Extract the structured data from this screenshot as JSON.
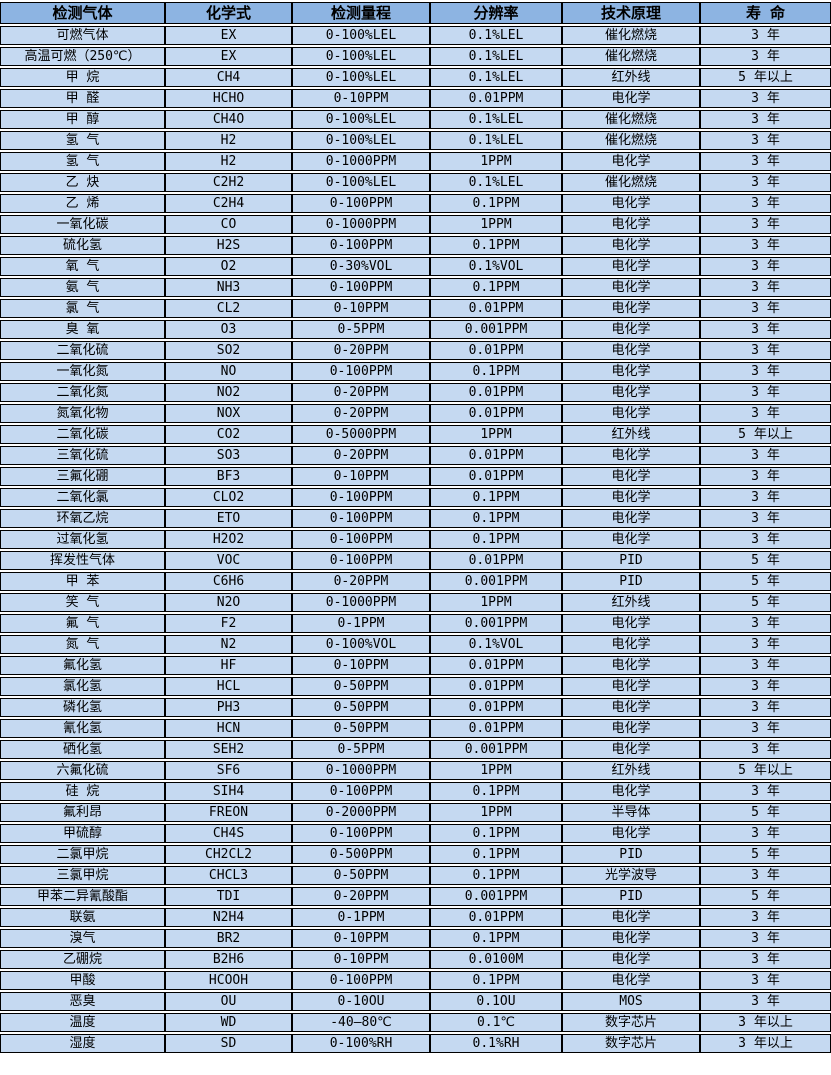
{
  "colors": {
    "header_bg": "#8DB4E2",
    "row_bg": "#C5D9F1",
    "border": "#000000",
    "gap": "#FFFFFF",
    "text": "#000000"
  },
  "table": {
    "column_keys": [
      "gas",
      "formula",
      "range",
      "resolution",
      "principle",
      "lifespan"
    ],
    "headers": [
      "检测气体",
      "化学式",
      "检测量程",
      "分辨率",
      "技术原理",
      "寿 命"
    ],
    "rows": [
      [
        "可燃气体",
        "EX",
        "0-100%LEL",
        "0.1%LEL",
        "催化燃烧",
        "3 年"
      ],
      [
        "高温可燃（250℃）",
        "EX",
        "0-100%LEL",
        "0.1%LEL",
        "催化燃烧",
        "3 年"
      ],
      [
        "甲 烷",
        "CH4",
        "0-100%LEL",
        "0.1%LEL",
        "红外线",
        "5 年以上"
      ],
      [
        "甲 醛",
        "HCHO",
        "0-10PPM",
        "0.01PPM",
        "电化学",
        "3 年"
      ],
      [
        "甲 醇",
        "CH4O",
        "0-100%LEL",
        "0.1%LEL",
        "催化燃烧",
        "3 年"
      ],
      [
        "氢 气",
        "H2",
        "0-100%LEL",
        "0.1%LEL",
        "催化燃烧",
        "3 年"
      ],
      [
        "氢 气",
        "H2",
        "0-1000PPM",
        "1PPM",
        "电化学",
        "3 年"
      ],
      [
        "乙 炔",
        "C2H2",
        "0-100%LEL",
        "0.1%LEL",
        "催化燃烧",
        "3 年"
      ],
      [
        "乙 烯",
        "C2H4",
        "0-100PPM",
        "0.1PPM",
        "电化学",
        "3 年"
      ],
      [
        "一氧化碳",
        "CO",
        "0-1000PPM",
        "1PPM",
        "电化学",
        "3 年"
      ],
      [
        "硫化氢",
        "H2S",
        "0-100PPM",
        "0.1PPM",
        "电化学",
        "3 年"
      ],
      [
        "氧 气",
        "O2",
        "0-30%VOL",
        "0.1%VOL",
        "电化学",
        "3 年"
      ],
      [
        "氨 气",
        "NH3",
        "0-100PPM",
        "0.1PPM",
        "电化学",
        "3 年"
      ],
      [
        "氯 气",
        "CL2",
        "0-10PPM",
        "0.01PPM",
        "电化学",
        "3 年"
      ],
      [
        "臭 氧",
        "O3",
        "0-5PPM",
        "0.001PPM",
        "电化学",
        "3 年"
      ],
      [
        "二氧化硫",
        "SO2",
        "0-20PPM",
        "0.01PPM",
        "电化学",
        "3 年"
      ],
      [
        "一氧化氮",
        "NO",
        "0-100PPM",
        "0.1PPM",
        "电化学",
        "3 年"
      ],
      [
        "二氧化氮",
        "NO2",
        "0-20PPM",
        "0.01PPM",
        "电化学",
        "3 年"
      ],
      [
        "氮氧化物",
        "NOX",
        "0-20PPM",
        "0.01PPM",
        "电化学",
        "3 年"
      ],
      [
        "二氧化碳",
        "CO2",
        "0-5000PPM",
        "1PPM",
        "红外线",
        "5 年以上"
      ],
      [
        "三氧化硫",
        "SO3",
        "0-20PPM",
        "0.01PPM",
        "电化学",
        "3 年"
      ],
      [
        "三氟化硼",
        "BF3",
        "0-10PPM",
        "0.01PPM",
        "电化学",
        "3 年"
      ],
      [
        "二氧化氯",
        "CLO2",
        "0-100PPM",
        "0.1PPM",
        "电化学",
        "3 年"
      ],
      [
        "环氧乙烷",
        "ETO",
        "0-100PPM",
        "0.1PPM",
        "电化学",
        "3 年"
      ],
      [
        "过氧化氢",
        "H2O2",
        "0-100PPM",
        "0.1PPM",
        "电化学",
        "3 年"
      ],
      [
        "挥发性气体",
        "VOC",
        "0-100PPM",
        "0.01PPM",
        "PID",
        "5 年"
      ],
      [
        "甲 苯",
        "C6H6",
        "0-20PPM",
        "0.001PPM",
        "PID",
        "5 年"
      ],
      [
        "笑 气",
        "N2O",
        "0-1000PPM",
        "1PPM",
        "红外线",
        "5 年"
      ],
      [
        "氟 气",
        "F2",
        "0-1PPM",
        "0.001PPM",
        "电化学",
        "3 年"
      ],
      [
        "氮 气",
        "N2",
        "0-100%VOL",
        "0.1%VOL",
        "电化学",
        "3 年"
      ],
      [
        "氟化氢",
        "HF",
        "0-10PPM",
        "0.01PPM",
        "电化学",
        "3 年"
      ],
      [
        "氯化氢",
        "HCL",
        "0-50PPM",
        "0.01PPM",
        "电化学",
        "3 年"
      ],
      [
        "磷化氢",
        "PH3",
        "0-50PPM",
        "0.01PPM",
        "电化学",
        "3 年"
      ],
      [
        "氰化氢",
        "HCN",
        "0-50PPM",
        "0.01PPM",
        "电化学",
        "3 年"
      ],
      [
        "硒化氢",
        "SEH2",
        "0-5PPM",
        "0.001PPM",
        "电化学",
        "3 年"
      ],
      [
        "六氟化硫",
        "SF6",
        "0-1000PPM",
        "1PPM",
        "红外线",
        "5 年以上"
      ],
      [
        "硅 烷",
        "SIH4",
        "0-100PPM",
        "0.1PPM",
        "电化学",
        "3 年"
      ],
      [
        "氟利昂",
        "FREON",
        "0-2000PPM",
        "1PPM",
        "半导体",
        "5 年"
      ],
      [
        "甲硫醇",
        "CH4S",
        "0-100PPM",
        "0.1PPM",
        "电化学",
        "3 年"
      ],
      [
        "二氯甲烷",
        "CH2CL2",
        "0-500PPM",
        "0.1PPM",
        "PID",
        "5 年"
      ],
      [
        "三氯甲烷",
        "CHCL3",
        "0-50PPM",
        "0.1PPM",
        "光学波导",
        "3 年"
      ],
      [
        "甲苯二异氰酸酯",
        "TDI",
        "0-20PPM",
        "0.001PPM",
        "PID",
        "5 年"
      ],
      [
        "联氨",
        "N2H4",
        "0-1PPM",
        "0.01PPM",
        "电化学",
        "3 年"
      ],
      [
        "溴气",
        "BR2",
        "0-10PPM",
        "0.1PPM",
        "电化学",
        "3 年"
      ],
      [
        "乙硼烷",
        "B2H6",
        "0-10PPM",
        "0.0100M",
        "电化学",
        "3 年"
      ],
      [
        "甲酸",
        "HCOOH",
        "0-100PPM",
        "0.1PPM",
        "电化学",
        "3 年"
      ],
      [
        "恶臭",
        "OU",
        "0-10OU",
        "0.1OU",
        "MOS",
        "3 年"
      ],
      [
        "温度",
        "WD",
        "-40—80℃",
        "0.1℃",
        "数字芯片",
        "3 年以上"
      ],
      [
        "湿度",
        "SD",
        "0-100%RH",
        "0.1%RH",
        "数字芯片",
        "3 年以上"
      ]
    ]
  }
}
